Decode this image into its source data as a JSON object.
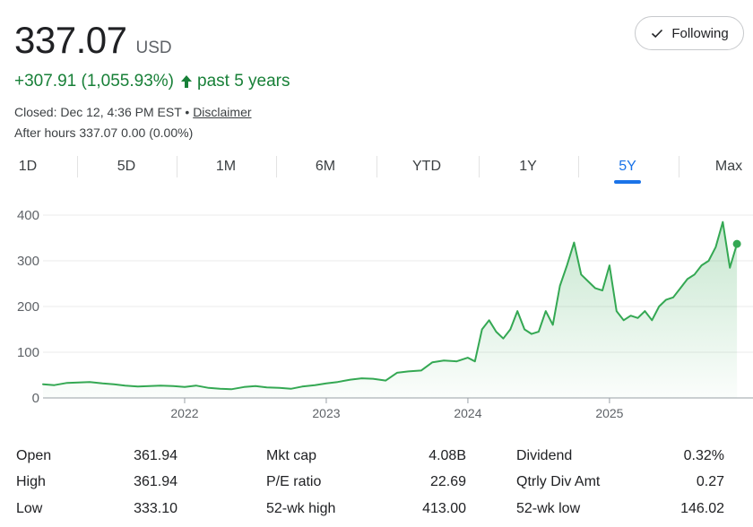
{
  "quote": {
    "price": "337.07",
    "currency": "USD",
    "change": "+307.91 (1,055.93%)",
    "period": "past 5 years",
    "closed": "Closed: Dec 12, 4:36 PM EST",
    "separator": "•",
    "disclaimer": "Disclaimer",
    "after_hours": "After hours 337.07 0.00 (0.00%)"
  },
  "follow_button": {
    "label": "Following",
    "icon": "check-icon"
  },
  "tabs": [
    {
      "label": "1D",
      "active": false
    },
    {
      "label": "5D",
      "active": false
    },
    {
      "label": "1M",
      "active": false
    },
    {
      "label": "6M",
      "active": false
    },
    {
      "label": "YTD",
      "active": false
    },
    {
      "label": "1Y",
      "active": false
    },
    {
      "label": "5Y",
      "active": true
    },
    {
      "label": "Max",
      "active": false
    }
  ],
  "chart_data": {
    "type": "area",
    "y_ticks": [
      "400",
      "300",
      "200",
      "100",
      "0"
    ],
    "x_ticks": [
      "2022",
      "2023",
      "2024",
      "2025"
    ],
    "ylim": [
      0,
      400
    ],
    "xlim": [
      2021.0,
      2025.95
    ],
    "line_color": "#34a853",
    "fill_color": "#34a853",
    "series": [
      {
        "x": [
          2021.0,
          2021.08,
          2021.17,
          2021.25,
          2021.33,
          2021.42,
          2021.5,
          2021.58,
          2021.67,
          2021.75,
          2021.83,
          2021.92,
          2022.0,
          2022.08,
          2022.17,
          2022.25,
          2022.33,
          2022.42,
          2022.5,
          2022.58,
          2022.67,
          2022.75,
          2022.83,
          2022.92,
          2023.0,
          2023.08,
          2023.17,
          2023.25,
          2023.33,
          2023.42,
          2023.5,
          2023.58,
          2023.67,
          2023.75,
          2023.83,
          2023.92,
          2024.0,
          2024.05,
          2024.1,
          2024.15,
          2024.2,
          2024.25,
          2024.3,
          2024.35,
          2024.4,
          2024.45,
          2024.5,
          2024.55,
          2024.6,
          2024.65,
          2024.7,
          2024.75,
          2024.8,
          2024.85,
          2024.9,
          2024.95,
          2025.0,
          2025.05,
          2025.1,
          2025.15,
          2025.2,
          2025.25,
          2025.3,
          2025.35,
          2025.4,
          2025.45,
          2025.5,
          2025.55,
          2025.6,
          2025.65,
          2025.7,
          2025.75,
          2025.8,
          2025.85,
          2025.9
        ],
        "y": [
          30,
          28,
          33,
          34,
          35,
          32,
          30,
          27,
          25,
          26,
          27,
          26,
          24,
          27,
          22,
          20,
          19,
          24,
          26,
          23,
          22,
          20,
          25,
          28,
          32,
          35,
          40,
          43,
          42,
          38,
          55,
          58,
          60,
          78,
          82,
          80,
          88,
          80,
          150,
          170,
          145,
          130,
          150,
          190,
          150,
          140,
          145,
          190,
          160,
          245,
          290,
          340,
          270,
          255,
          240,
          235,
          290,
          190,
          170,
          180,
          175,
          190,
          170,
          200,
          215,
          220,
          240,
          260,
          270,
          290,
          300,
          330,
          385,
          285,
          337
        ]
      }
    ]
  },
  "stats": [
    [
      {
        "label": "Open",
        "value": "361.94"
      },
      {
        "label": "Mkt cap",
        "value": "4.08B"
      },
      {
        "label": "Dividend",
        "value": "0.32%"
      }
    ],
    [
      {
        "label": "High",
        "value": "361.94"
      },
      {
        "label": "P/E ratio",
        "value": "22.69"
      },
      {
        "label": "Qtrly Div Amt",
        "value": "0.27"
      }
    ],
    [
      {
        "label": "Low",
        "value": "333.10"
      },
      {
        "label": "52-wk high",
        "value": "413.00"
      },
      {
        "label": "52-wk low",
        "value": "146.02"
      }
    ]
  ]
}
